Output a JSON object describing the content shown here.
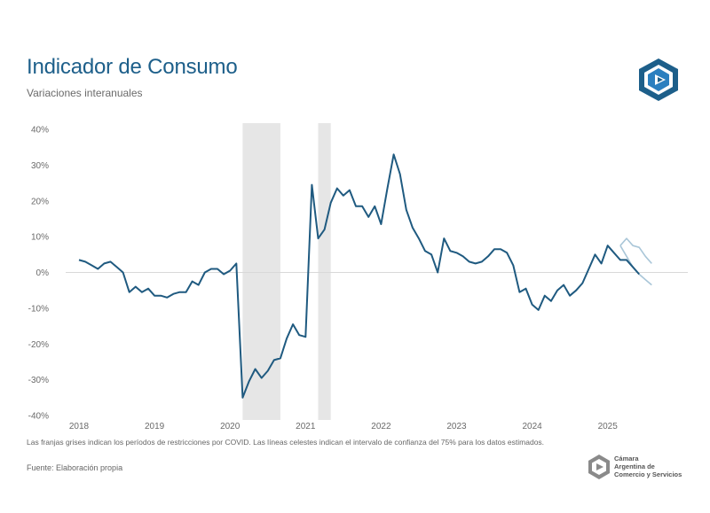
{
  "header": {
    "title": "Indicador de Consumo",
    "subtitle": "Variaciones interanuales"
  },
  "logo": {
    "icon": "cac-hexagon-logo-icon",
    "color": "#1d5f8a"
  },
  "footer": {
    "note": "Las franjas grises indican los períodos de restricciones por COVID. Las líneas celestes indican el intervalo de confianza del 75% para los datos estimados.",
    "source": "Fuente: Elaboración propia",
    "brand_lines": [
      "Cámara",
      "Argentina de",
      "Comercio y Servicios"
    ]
  },
  "colors": {
    "line": "#1f5a80",
    "ci": "#a9c6d8",
    "band": "#e6e6e6",
    "zero": "#d9d9d9"
  },
  "chart_data": {
    "type": "line",
    "title": "Indicador de Consumo",
    "subtitle": "Variaciones interanuales",
    "xlabel": "",
    "ylabel": "",
    "ylim": [
      -40,
      40
    ],
    "yticks": [
      "40%",
      "30%",
      "20%",
      "10%",
      "0%",
      "-10%",
      "-20%",
      "-30%",
      "-40%"
    ],
    "ytick_values": [
      40,
      30,
      20,
      10,
      0,
      -10,
      -20,
      -30,
      -40
    ],
    "xticks": [
      "2018",
      "2019",
      "2020",
      "2021",
      "2022",
      "2023",
      "2024",
      "2025"
    ],
    "grid": false,
    "start": "2018-01",
    "frequency": "monthly",
    "series": [
      {
        "name": "Indicador de Consumo",
        "values": [
          3.5,
          3,
          2,
          1,
          2.5,
          3,
          1.5,
          0,
          -5.5,
          -4,
          -5.5,
          -4.5,
          -6.5,
          -6.5,
          -7,
          -6,
          -5.5,
          -5.5,
          -2.5,
          -3.5,
          0,
          1,
          1,
          -0.5,
          0.5,
          2.5,
          -35,
          -30.5,
          -27,
          -29.5,
          -27.5,
          -24.5,
          -24,
          -18.5,
          -14.5,
          -17.5,
          -18,
          24.5,
          9.5,
          12,
          19.5,
          23.5,
          21.5,
          23,
          18.5,
          18.5,
          15.5,
          18.5,
          13.5,
          23.5,
          33,
          27.5,
          17.5,
          12.5,
          9.5,
          6,
          5,
          0,
          9.5,
          6,
          5.5,
          4.5,
          3,
          2.5,
          3,
          4.5,
          6.5,
          6.5,
          5.5,
          2,
          -5.5,
          -4.5,
          -9,
          -10.5,
          -6.5,
          -8,
          -5,
          -3.5,
          -6.5,
          -5,
          -3,
          1,
          5,
          2.5,
          7.5,
          5.5,
          3.5,
          3.5,
          1.5,
          -0.5
        ]
      },
      {
        "name": "IC 75% superior",
        "start": "2025-03",
        "values": [
          7.5,
          9.5,
          7.5,
          7,
          4.5,
          2.5
        ]
      },
      {
        "name": "IC 75% inferior",
        "start": "2025-03",
        "values": [
          7.5,
          4.5,
          1.5,
          -0.5,
          -2,
          -3.5
        ]
      }
    ],
    "shaded_periods": [
      {
        "label": "COVID",
        "start": "2020-03",
        "end": "2020-09"
      },
      {
        "label": "COVID",
        "start": "2021-03",
        "end": "2021-05"
      }
    ]
  }
}
